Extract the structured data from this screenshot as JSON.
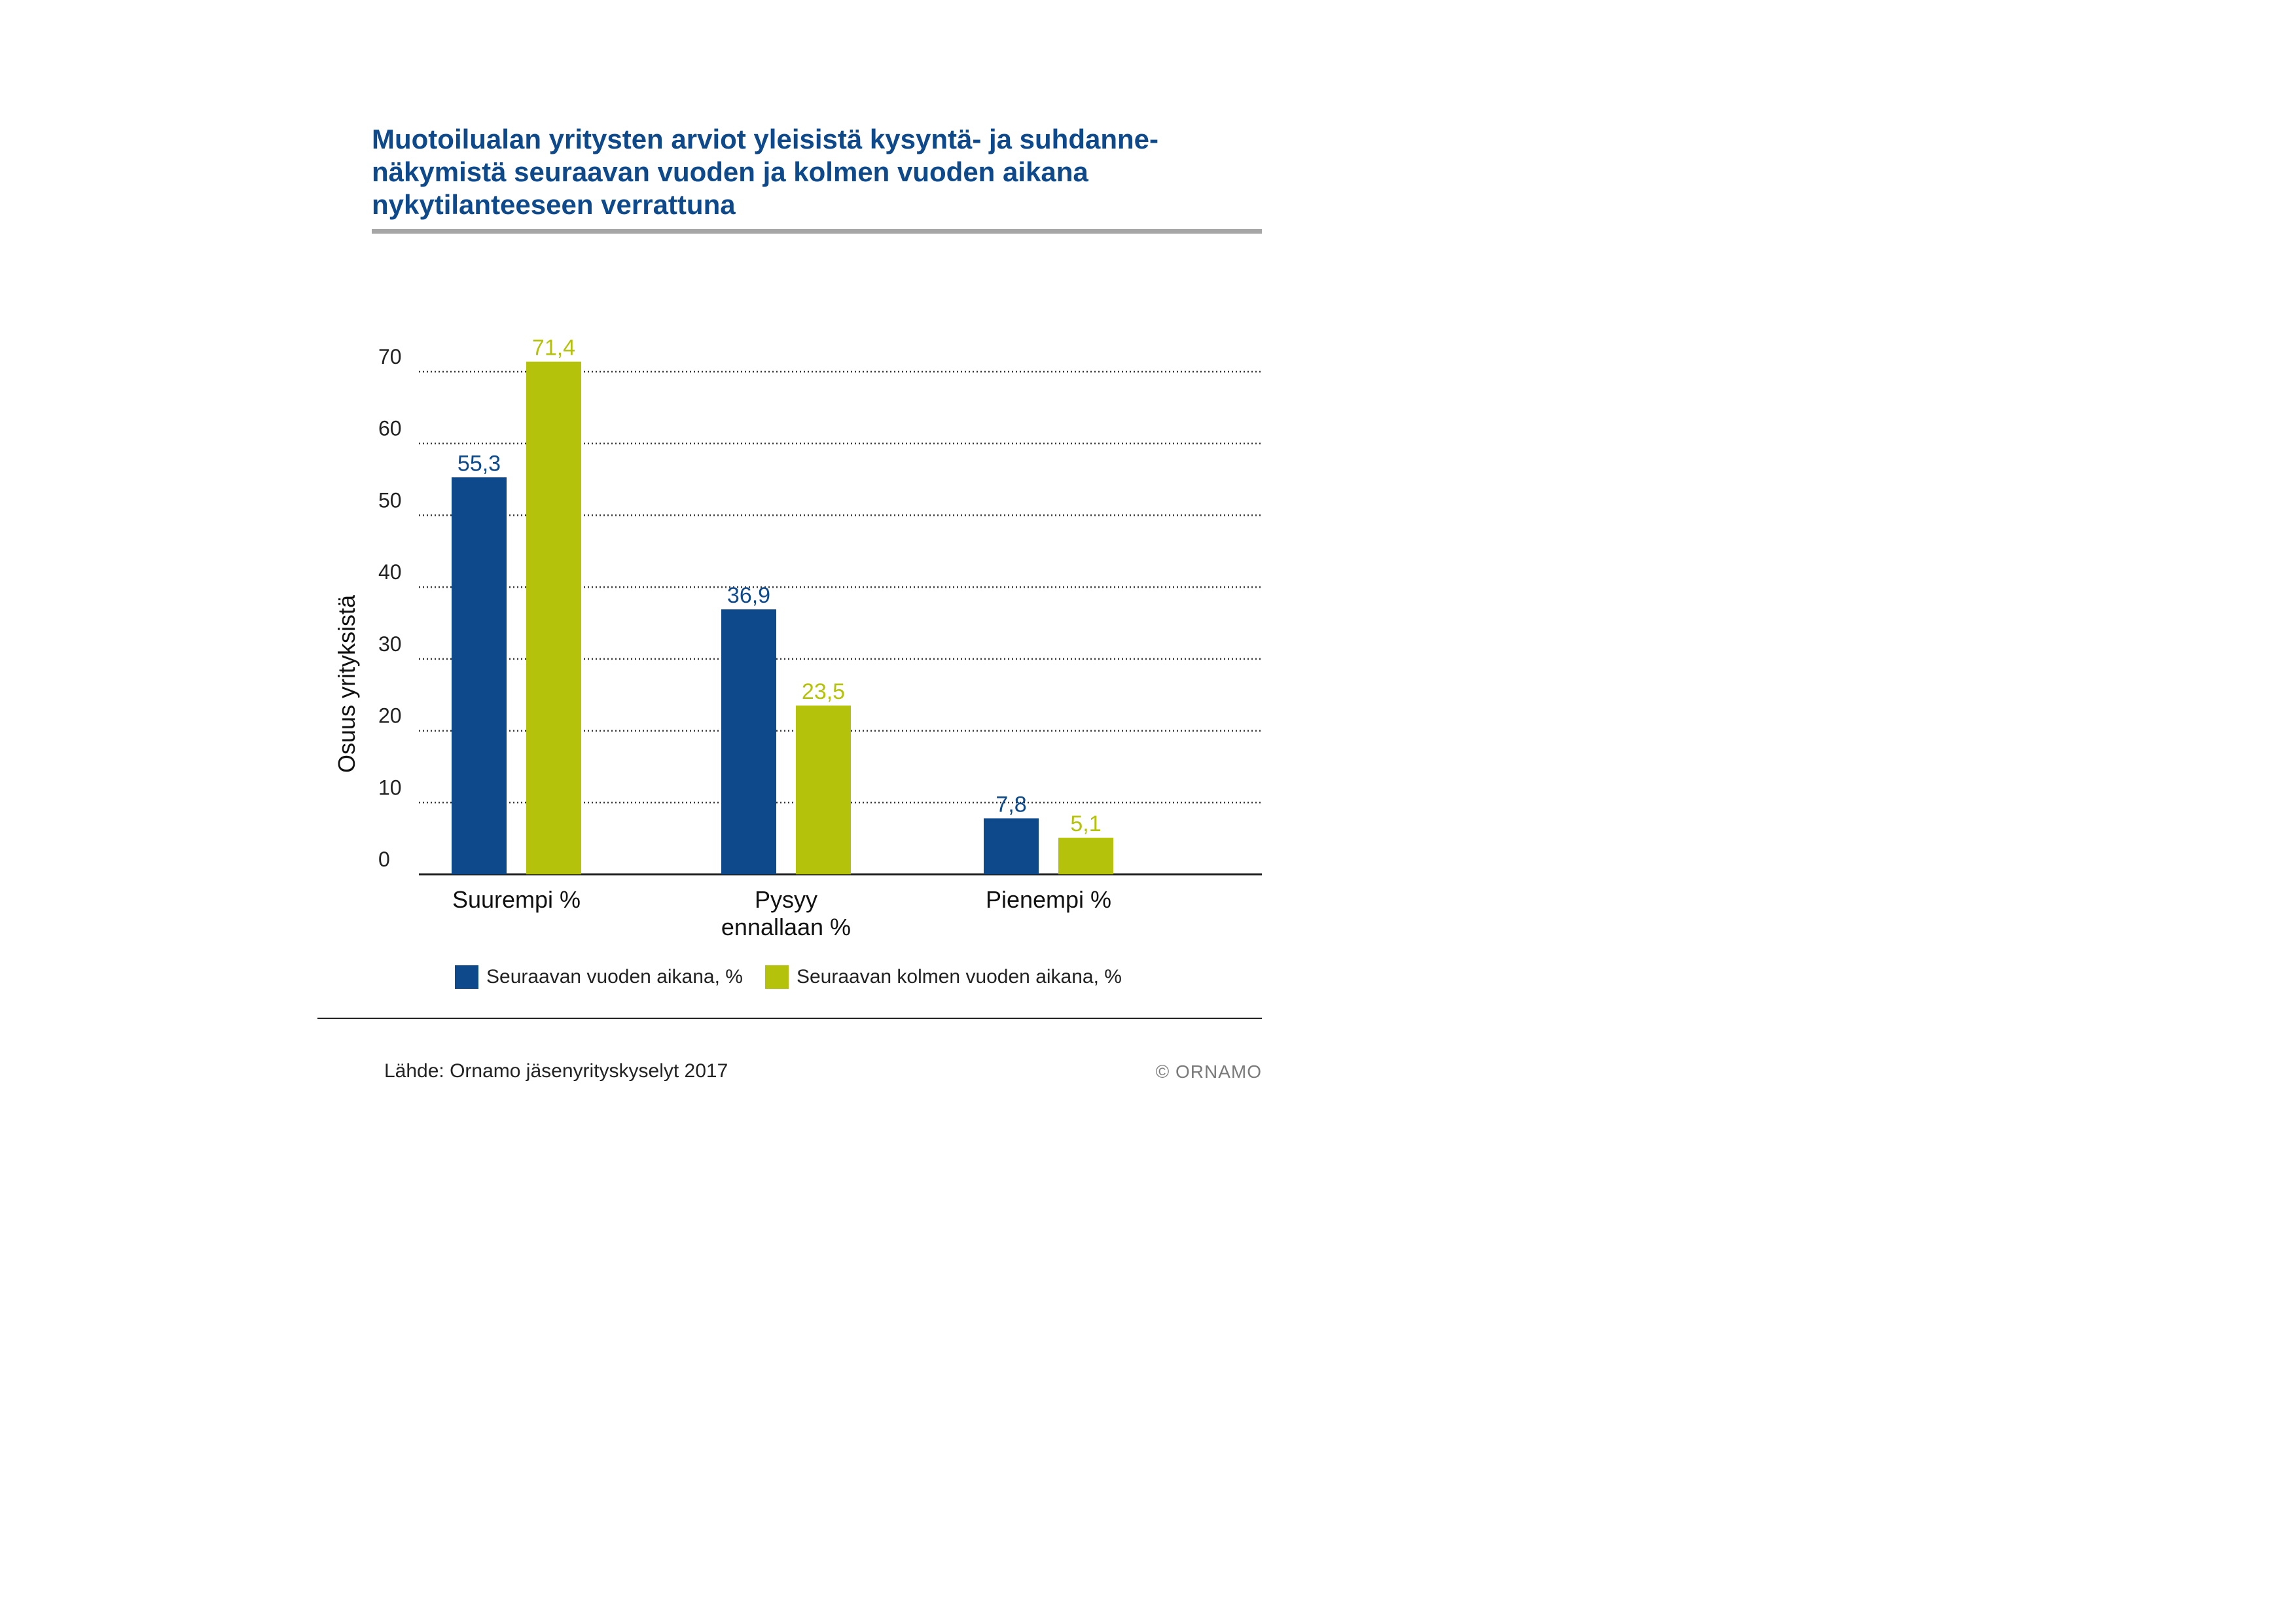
{
  "title_lines": [
    "Muotoilualan yritysten arviot yleisistä kysyntä- ja suhdanne-",
    "näkymistä seuraavan vuoden ja kolmen vuoden aikana",
    "nykytilanteeseen verrattuna"
  ],
  "chart_data": {
    "type": "bar",
    "title": "Muotoilualan yritysten arviot yleisistä kysyntä- ja suhdannenäkymistä seuraavan vuoden ja kolmen vuoden aikana nykytilanteeseen verrattuna",
    "xlabel": "",
    "ylabel": "Osuus yrityksistä",
    "categories": [
      [
        "Suurempi %"
      ],
      [
        "Pysyy",
        "ennallaan %"
      ],
      [
        "Pienempi %"
      ]
    ],
    "series": [
      {
        "name": "Seuraavan vuoden aikana, %",
        "values": [
          55.3,
          36.9,
          7.8
        ],
        "labels": [
          "55,3",
          "36,9",
          "7,8"
        ],
        "color": "#0e4a8b"
      },
      {
        "name": "Seuraavan kolmen vuoden aikana, %",
        "values": [
          71.4,
          23.5,
          5.1
        ],
        "labels": [
          "71,4",
          "23,5",
          "5,1"
        ],
        "color": "#b5c20c"
      }
    ],
    "ylim": [
      0,
      70
    ],
    "yticks": [
      0,
      10,
      20,
      30,
      40,
      50,
      60,
      70
    ],
    "grid": true,
    "legend": "bottom"
  },
  "footer": {
    "source": "Lähde: Ornamo jäsenyrityskyselyt 2017",
    "copyright": "© ORNAMO"
  }
}
